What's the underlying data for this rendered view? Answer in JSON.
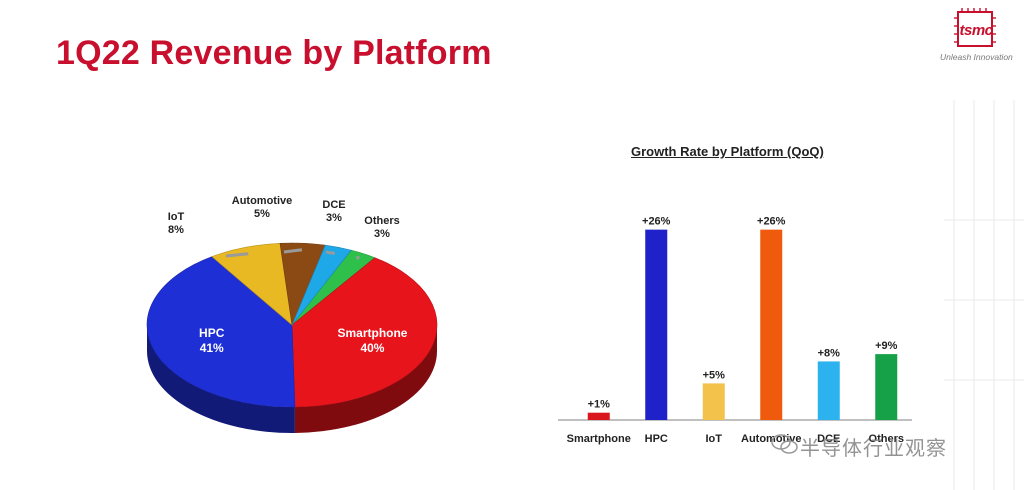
{
  "header": {
    "title": "1Q22 Revenue by Platform",
    "logo_text": "tsmc",
    "tagline": "Unleash Innovation"
  },
  "watermark": "半导体行业观察",
  "colors": {
    "title_red": "#c8102e",
    "smartphone": "#e8141c",
    "hpc": "#1f2fd6",
    "iot": "#e8b923",
    "automotive": "#8b4a14",
    "dce": "#1fa8e8",
    "others": "#2ec04a"
  },
  "chart_data": [
    {
      "type": "pie",
      "title": "",
      "slices": [
        {
          "label": "Smartphone",
          "value": 40,
          "value_label": "40%",
          "color": "#e8141c"
        },
        {
          "label": "HPC",
          "value": 41,
          "value_label": "41%",
          "color": "#1f2fd6"
        },
        {
          "label": "IoT",
          "value": 8,
          "value_label": "8%",
          "color": "#e8b923"
        },
        {
          "label": "Automotive",
          "value": 5,
          "value_label": "5%",
          "color": "#8b4a14"
        },
        {
          "label": "DCE",
          "value": 3,
          "value_label": "3%",
          "color": "#1fa8e8"
        },
        {
          "label": "Others",
          "value": 3,
          "value_label": "3%",
          "color": "#2ec04a"
        }
      ]
    },
    {
      "type": "bar",
      "title": "Growth Rate by Platform (QoQ)",
      "categories": [
        "Smartphone",
        "HPC",
        "IoT",
        "Automotive",
        "DCE",
        "Others"
      ],
      "values": [
        1,
        26,
        5,
        26,
        8,
        9
      ],
      "value_labels": [
        "+1%",
        "+26%",
        "+5%",
        "+26%",
        "+8%",
        "+9%"
      ],
      "colors": [
        "#d8161c",
        "#1f22c8",
        "#f2c24a",
        "#f05a0c",
        "#2bb2ef",
        "#16a048"
      ],
      "ylim": [
        0,
        28
      ],
      "grid": false
    }
  ]
}
